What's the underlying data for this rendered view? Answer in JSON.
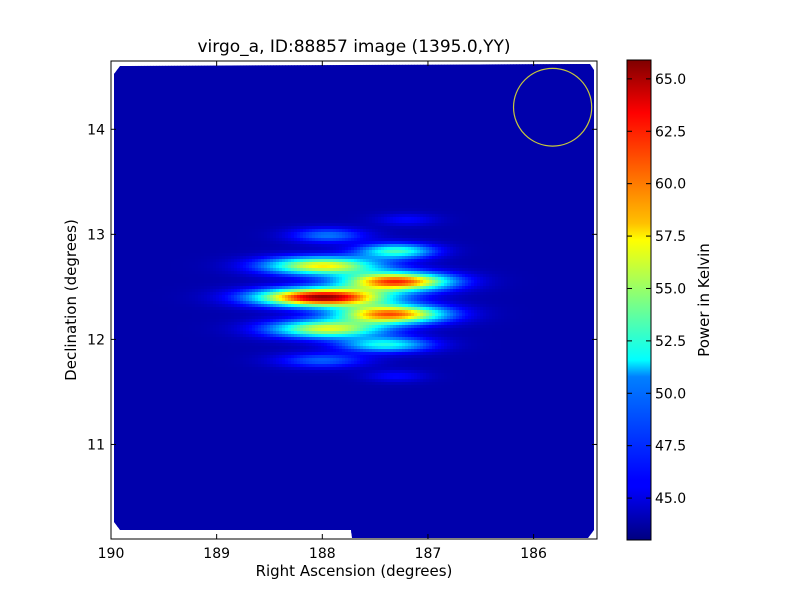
{
  "chart_data": {
    "type": "heatmap",
    "title": "virgo_a, ID:88857 image (1395.0,YY)",
    "xlabel": "Right Ascension (degrees)",
    "ylabel": "Declination (degrees)",
    "xlim": [
      190.0,
      185.4
    ],
    "ylim": [
      10.1,
      14.65
    ],
    "x_ticks": [
      190,
      189,
      188,
      187,
      186
    ],
    "x_tick_labels": [
      "190",
      "189",
      "188",
      "187",
      "186"
    ],
    "y_ticks": [
      11,
      12,
      13,
      14
    ],
    "y_tick_labels": [
      "11",
      "12",
      "13",
      "14"
    ],
    "colorbar": {
      "label": "Power in Kelvin",
      "range": [
        43.0,
        65.9
      ],
      "ticks": [
        45.0,
        47.5,
        50.0,
        52.5,
        55.0,
        57.5,
        60.0,
        62.5,
        65.0
      ],
      "tick_labels": [
        "45.0",
        "47.5",
        "50.0",
        "52.5",
        "55.0",
        "57.5",
        "60.0",
        "62.5",
        "65.0"
      ],
      "colormap": "jet"
    },
    "background_level": 44.0,
    "sources": [
      {
        "ra": 188.0,
        "dec": 12.4,
        "peak": 65.5,
        "sigma_ra": 0.42,
        "sigma_dec": 0.06
      },
      {
        "ra": 188.0,
        "dec": 12.7,
        "peak": 57.5,
        "sigma_ra": 0.38,
        "sigma_dec": 0.06
      },
      {
        "ra": 187.95,
        "dec": 12.1,
        "peak": 56.5,
        "sigma_ra": 0.38,
        "sigma_dec": 0.06
      },
      {
        "ra": 187.95,
        "dec": 12.99,
        "peak": 48.5,
        "sigma_ra": 0.25,
        "sigma_dec": 0.05
      },
      {
        "ra": 188.0,
        "dec": 11.8,
        "peak": 48.0,
        "sigma_ra": 0.3,
        "sigma_dec": 0.05
      },
      {
        "ra": 187.3,
        "dec": 12.55,
        "peak": 62.0,
        "sigma_ra": 0.35,
        "sigma_dec": 0.06
      },
      {
        "ra": 187.35,
        "dec": 12.24,
        "peak": 61.0,
        "sigma_ra": 0.35,
        "sigma_dec": 0.06
      },
      {
        "ra": 187.3,
        "dec": 12.84,
        "peak": 53.0,
        "sigma_ra": 0.25,
        "sigma_dec": 0.05
      },
      {
        "ra": 187.4,
        "dec": 11.95,
        "peak": 52.0,
        "sigma_ra": 0.3,
        "sigma_dec": 0.05
      },
      {
        "ra": 187.2,
        "dec": 13.14,
        "peak": 46.0,
        "sigma_ra": 0.2,
        "sigma_dec": 0.04
      },
      {
        "ra": 187.3,
        "dec": 11.65,
        "peak": 46.0,
        "sigma_ra": 0.2,
        "sigma_dec": 0.04
      }
    ],
    "beam_circle": {
      "ra": 185.82,
      "dec": 14.21,
      "radius_deg": 0.37,
      "color": "#c8c83c"
    },
    "grid": false
  }
}
